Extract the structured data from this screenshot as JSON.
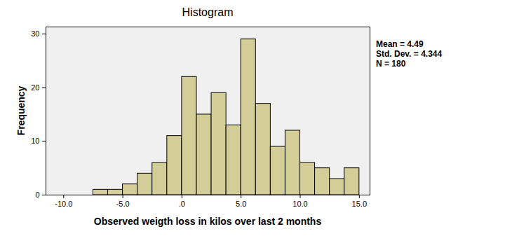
{
  "chart_data": {
    "type": "histogram",
    "title": "Histogram",
    "x_label": "Observed weigth loss in kilos over last 2 months",
    "y_label": "Frequency",
    "annotations": [
      "Mean = 4.49",
      "Std. Dev. = 4.344",
      "N = 180"
    ],
    "bins": [
      -7.5,
      -6.25,
      -5.0,
      -3.75,
      -2.5,
      -1.25,
      0.0,
      1.25,
      2.5,
      3.75,
      5.0,
      6.25,
      7.5,
      8.75,
      10.0,
      11.25,
      12.5,
      13.75,
      15.0
    ],
    "values": [
      1,
      1,
      2,
      4,
      6,
      11,
      22,
      15,
      19,
      13,
      29,
      17,
      9,
      12,
      6,
      5,
      3,
      5
    ],
    "color": "#d3ce97",
    "xlim": [
      -11.5,
      15.9
    ],
    "xticks": [
      {
        "value": -10,
        "label": "-10.0"
      },
      {
        "value": -5,
        "label": "-5.0"
      },
      {
        "value": 0,
        "label": ".0"
      },
      {
        "value": 5,
        "label": "5.0"
      },
      {
        "value": 10,
        "label": "10.0"
      },
      {
        "value": 15,
        "label": "15.0"
      }
    ],
    "ylim": [
      0,
      31.3
    ],
    "yticks": [
      0,
      10,
      20,
      30
    ],
    "grid": false
  }
}
